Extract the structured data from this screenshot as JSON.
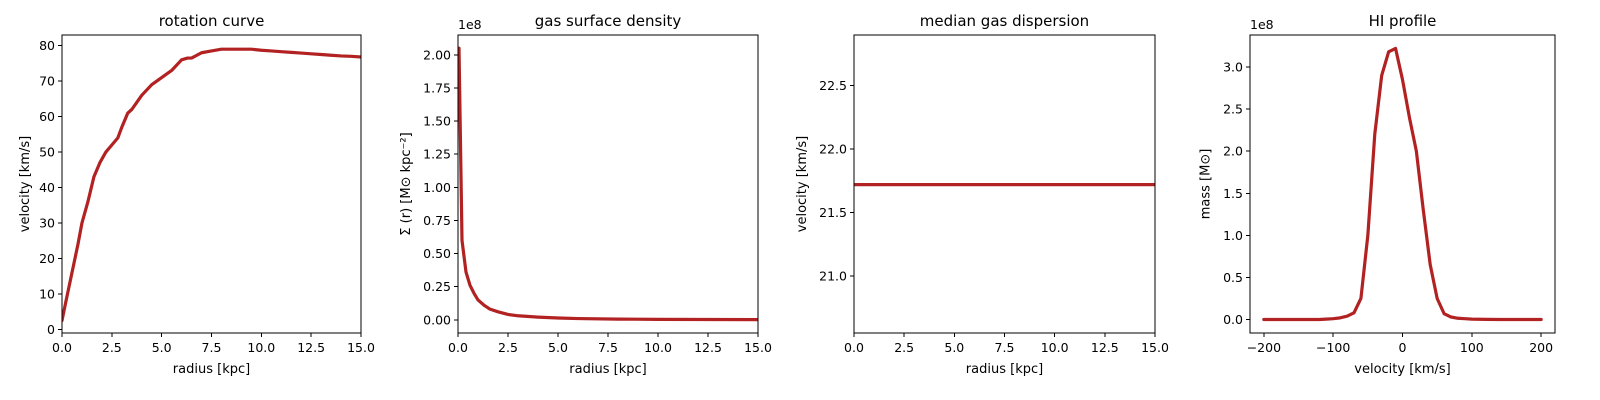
{
  "chart_data": [
    {
      "type": "line",
      "title": "rotation curve",
      "xlabel": "radius [kpc]",
      "ylabel": "velocity [km/s]",
      "xlim": [
        0,
        15
      ],
      "ylim": [
        -1,
        83
      ],
      "xticks": [
        0,
        2.5,
        5,
        7.5,
        10,
        12.5,
        15
      ],
      "xtick_labels": [
        "0.0",
        "2.5",
        "5.0",
        "7.5",
        "10.0",
        "12.5",
        "15.0"
      ],
      "yticks": [
        0,
        10,
        20,
        30,
        40,
        50,
        60,
        70,
        80
      ],
      "ytick_labels": [
        "0",
        "10",
        "20",
        "30",
        "40",
        "50",
        "60",
        "70",
        "80"
      ],
      "offset_text": "",
      "grid": false,
      "series": [
        {
          "color": "#b22222",
          "x": [
            0,
            0.2,
            0.5,
            0.8,
            1.0,
            1.3,
            1.6,
            1.9,
            2.2,
            2.5,
            2.8,
            3.0,
            3.3,
            3.5,
            4.0,
            4.5,
            5.0,
            5.5,
            6.0,
            6.3,
            6.5,
            7.0,
            7.5,
            8.0,
            8.5,
            9.0,
            9.5,
            10.0,
            10.5,
            11.0,
            11.5,
            12.0,
            12.5,
            13.0,
            13.5,
            14.0,
            14.5,
            15.0
          ],
          "y": [
            2.5,
            8,
            16,
            24,
            30,
            36,
            43,
            47,
            50,
            52,
            54,
            57,
            61,
            62,
            66,
            69,
            71,
            73,
            76,
            76.5,
            76.5,
            78,
            78.5,
            79,
            79,
            79,
            79,
            78.7,
            78.5,
            78.3,
            78.1,
            77.9,
            77.7,
            77.5,
            77.3,
            77.1,
            77.0,
            76.8
          ]
        }
      ]
    },
    {
      "type": "line",
      "title": "gas surface density",
      "xlabel": "radius [kpc]",
      "ylabel": "Σ (r) [M⊙ kpc⁻²]",
      "xlim": [
        0,
        15
      ],
      "ylim": [
        -10000000.0,
        215000000.0
      ],
      "xticks": [
        0,
        2.5,
        5,
        7.5,
        10,
        12.5,
        15
      ],
      "xtick_labels": [
        "0.0",
        "2.5",
        "5.0",
        "7.5",
        "10.0",
        "12.5",
        "15.0"
      ],
      "yticks": [
        0,
        25000000.0,
        50000000.0,
        75000000.0,
        100000000.0,
        125000000.0,
        150000000.0,
        175000000.0,
        200000000.0
      ],
      "ytick_labels": [
        "0.00",
        "0.25",
        "0.50",
        "0.75",
        "1.00",
        "1.25",
        "1.50",
        "1.75",
        "2.00"
      ],
      "offset_text": "1e8",
      "grid": false,
      "series": [
        {
          "color": "#b22222",
          "x": [
            0.05,
            0.2,
            0.4,
            0.6,
            0.8,
            1.0,
            1.3,
            1.6,
            2.0,
            2.5,
            3.0,
            4.0,
            5.0,
            6.0,
            8.0,
            10.0,
            12.5,
            15.0
          ],
          "y": [
            205000000.0,
            60000000.0,
            36000000.0,
            26000000.0,
            20000000.0,
            15000000.0,
            11000000.0,
            8000000.0,
            6000000.0,
            4000000.0,
            3000000.0,
            2000000.0,
            1300000.0,
            900000.0,
            500000.0,
            300000.0,
            200000.0,
            100000.0
          ]
        }
      ]
    },
    {
      "type": "line",
      "title": "median gas dispersion",
      "xlabel": "radius [kpc]",
      "ylabel": "velocity [km/s]",
      "xlim": [
        0,
        15
      ],
      "ylim": [
        20.55,
        22.9
      ],
      "xticks": [
        0,
        2.5,
        5,
        7.5,
        10,
        12.5,
        15
      ],
      "xtick_labels": [
        "0.0",
        "2.5",
        "5.0",
        "7.5",
        "10.0",
        "12.5",
        "15.0"
      ],
      "yticks": [
        21.0,
        21.5,
        22.0,
        22.5
      ],
      "ytick_labels": [
        "21.0",
        "21.5",
        "22.0",
        "22.5"
      ],
      "offset_text": "",
      "grid": false,
      "series": [
        {
          "color": "#b22222",
          "x": [
            0,
            15
          ],
          "y": [
            21.72,
            21.72
          ]
        }
      ]
    },
    {
      "type": "line",
      "title": "HI profile",
      "xlabel": "velocity [km/s]",
      "ylabel": "mass [M⊙]",
      "xlim": [
        -220,
        220
      ],
      "ylim": [
        -16000000.0,
        338000000.0
      ],
      "xticks": [
        -200,
        -100,
        0,
        100,
        200
      ],
      "xtick_labels": [
        "−200",
        "−100",
        "0",
        "100",
        "200"
      ],
      "yticks": [
        0,
        50000000.0,
        100000000.0,
        150000000.0,
        200000000.0,
        250000000.0,
        300000000.0
      ],
      "ytick_labels": [
        "0.0",
        "0.5",
        "1.0",
        "1.5",
        "2.0",
        "2.5",
        "3.0"
      ],
      "offset_text": "1e8",
      "grid": false,
      "series": [
        {
          "color": "#b22222",
          "x": [
            -200,
            -180,
            -160,
            -140,
            -120,
            -110,
            -100,
            -90,
            -80,
            -70,
            -60,
            -50,
            -40,
            -30,
            -20,
            -10,
            0,
            10,
            20,
            30,
            40,
            50,
            60,
            70,
            80,
            90,
            100,
            120,
            140,
            160,
            180,
            200
          ],
          "y": [
            0,
            0,
            0,
            0,
            0,
            500000.0,
            1000000.0,
            2000000.0,
            4000000.0,
            8000000.0,
            25000000.0,
            100000000.0,
            220000000.0,
            290000000.0,
            318000000.0,
            322000000.0,
            285000000.0,
            240000000.0,
            200000000.0,
            130000000.0,
            65000000.0,
            25000000.0,
            7000000.0,
            3000000.0,
            1500000.0,
            1000000.0,
            500000.0,
            200000.0,
            0,
            0,
            0,
            0
          ]
        }
      ]
    }
  ]
}
